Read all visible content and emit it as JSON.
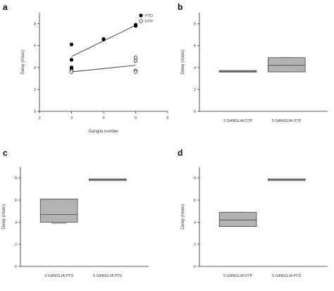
{
  "chart_data": [
    {
      "panel": "a",
      "type": "scatter",
      "title": "",
      "xlabel": "Ganglia number",
      "ylabel": "Delay (msec)",
      "xlim": [
        2,
        6
      ],
      "ylim": [
        0,
        9
      ],
      "xticks": [
        2,
        3,
        4,
        5,
        6
      ],
      "yticks": [
        0,
        2,
        4,
        6,
        8
      ],
      "legend_position": "top-right",
      "series": [
        {
          "name": "PTD",
          "marker": "filled-circle",
          "points": [
            [
              3,
              6.1
            ],
            [
              3,
              4.7
            ],
            [
              3,
              4.0
            ],
            [
              3,
              3.9
            ],
            [
              4,
              6.6
            ],
            [
              4,
              6.55
            ],
            [
              5,
              7.9
            ],
            [
              5,
              7.8
            ]
          ],
          "trend": [
            [
              3,
              5.0
            ],
            [
              5,
              7.85
            ]
          ]
        },
        {
          "name": "DTP",
          "marker": "open-circle",
          "points": [
            [
              3,
              3.7
            ],
            [
              3,
              3.6
            ],
            [
              5,
              4.9
            ],
            [
              5,
              4.6
            ],
            [
              5,
              3.7
            ],
            [
              5,
              3.6
            ]
          ],
          "trend": [
            [
              3,
              3.6
            ],
            [
              5,
              4.2
            ]
          ]
        }
      ]
    },
    {
      "panel": "b",
      "type": "box",
      "title": "",
      "xlabel": "",
      "ylabel": "Delay (msec)",
      "ylim": [
        0,
        9
      ],
      "yticks": [
        0,
        2,
        4,
        6,
        8
      ],
      "categories": [
        "3 GANGLIA DTP",
        "5 GANGLIA DTP"
      ],
      "boxes": [
        {
          "q1": 3.6,
          "median": 3.65,
          "q3": 3.7,
          "whisker_low": 3.6,
          "whisker_high": 3.7
        },
        {
          "q1": 3.6,
          "median": 4.2,
          "q3": 4.9,
          "whisker_low": 3.6,
          "whisker_high": 4.9
        }
      ]
    },
    {
      "panel": "c",
      "type": "box",
      "title": "",
      "xlabel": "",
      "ylabel": "Delay (msec)",
      "ylim": [
        0,
        9
      ],
      "yticks": [
        0,
        2,
        4,
        6,
        8
      ],
      "categories": [
        "3 GANGLIA PTD",
        "5 GANGLIA PTD"
      ],
      "boxes": [
        {
          "q1": 4.0,
          "median": 4.7,
          "q3": 6.1,
          "whisker_low": 3.9,
          "whisker_high": 6.1
        },
        {
          "q1": 7.8,
          "median": 7.85,
          "q3": 7.9,
          "whisker_low": 7.8,
          "whisker_high": 7.9
        }
      ]
    },
    {
      "panel": "d",
      "type": "box",
      "title": "",
      "xlabel": "",
      "ylabel": "Delay (msec)",
      "ylim": [
        0,
        9
      ],
      "yticks": [
        0,
        2,
        4,
        6,
        8
      ],
      "categories": [
        "5 GANGLIA DTP",
        "5 GANGLIA PTD"
      ],
      "boxes": [
        {
          "q1": 3.6,
          "median": 4.2,
          "q3": 4.9,
          "whisker_low": 3.6,
          "whisker_high": 4.9
        },
        {
          "q1": 7.8,
          "median": 7.85,
          "q3": 7.9,
          "whisker_low": 7.8,
          "whisker_high": 7.9
        }
      ]
    }
  ],
  "colors": {
    "axis": "#222222",
    "box_fill": "#b3b3b3",
    "box_stroke": "#444444",
    "trend": "#333333",
    "marker": "#000000"
  }
}
